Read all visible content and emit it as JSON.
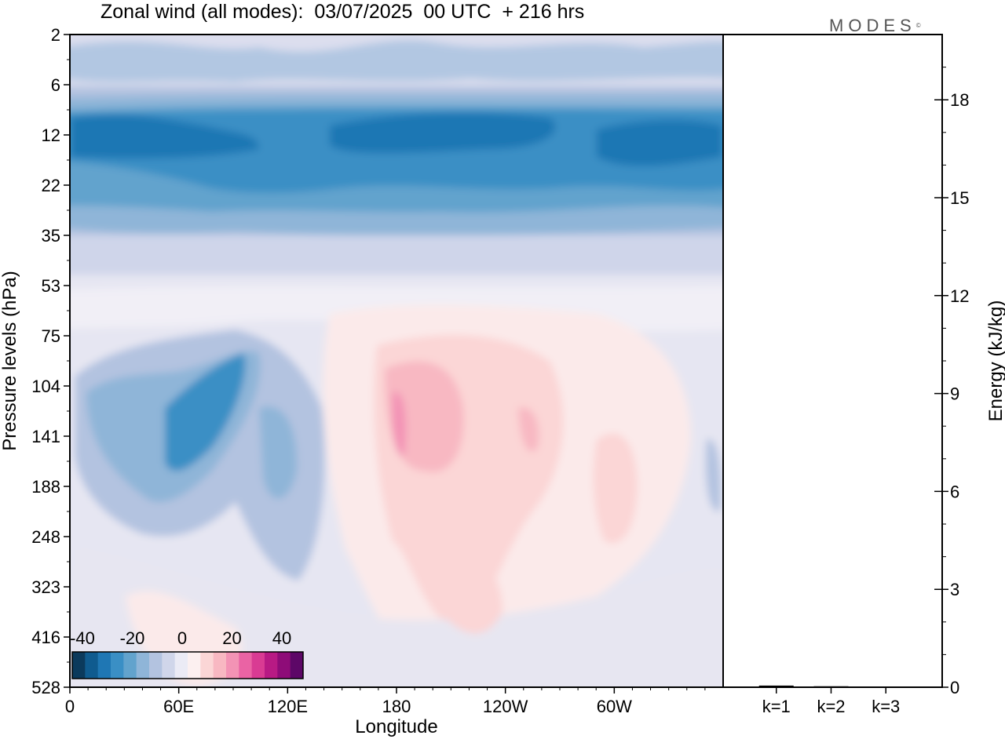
{
  "title": "Zonal wind (all modes):  03/07/2025  00 UTC  + 216 hrs",
  "logo": "MODES",
  "logo_mark": "©",
  "chart_data": [
    {
      "type": "heatmap",
      "xlabel": "Longitude",
      "ylabel": "Pressure levels (hPa)",
      "x_ticks": [
        "0",
        "60E",
        "120E",
        "180",
        "120W",
        "60W"
      ],
      "y_ticks": [
        "2",
        "6",
        "12",
        "22",
        "35",
        "53",
        "75",
        "104",
        "141",
        "188",
        "248",
        "323",
        "416",
        "528"
      ],
      "colorbar": {
        "labels": [
          "-40",
          "-20",
          "0",
          "20",
          "40"
        ],
        "range": [
          -40,
          40
        ],
        "colors": [
          "#0b3a5c",
          "#0f5b8f",
          "#1f77b4",
          "#3a8fc5",
          "#62a3cd",
          "#8fb5d8",
          "#b3c3e0",
          "#d0d6ea",
          "#ebebf5",
          "#fcf0f0",
          "#fbd6d6",
          "#f8b8c2",
          "#f393b5",
          "#ea63a4",
          "#d93b93",
          "#b81a84",
          "#8e0c78",
          "#5d0767"
        ]
      },
      "field_bands": [
        {
          "level": "2",
          "zonal_wind": -5
        },
        {
          "level": "6",
          "zonal_wind": -15
        },
        {
          "level": "12",
          "zonal_wind": -30
        },
        {
          "level": "22",
          "zonal_wind": -25
        },
        {
          "level": "35",
          "zonal_wind": -15
        },
        {
          "level": "53",
          "zonal_wind": -5
        },
        {
          "level": "75",
          "zonal_wind": 0
        },
        {
          "level": "104",
          "zonal_wind": -5
        },
        {
          "level": "141",
          "zonal_wind": 5
        },
        {
          "level": "188",
          "zonal_wind": 0
        },
        {
          "level": "248",
          "zonal_wind": -5
        },
        {
          "level": "323",
          "zonal_wind": -5
        },
        {
          "level": "416",
          "zonal_wind": 0
        },
        {
          "level": "528",
          "zonal_wind": -5
        }
      ]
    },
    {
      "type": "bar",
      "categories": [
        "k=1",
        "k=2",
        "k=3"
      ],
      "values": [
        0.05,
        0.03,
        0.02
      ],
      "ylabel": "Energy (kJ/kg)",
      "y_ticks": [
        "0",
        "3",
        "6",
        "9",
        "12",
        "15",
        "18"
      ],
      "ylim": [
        0,
        20
      ]
    }
  ]
}
